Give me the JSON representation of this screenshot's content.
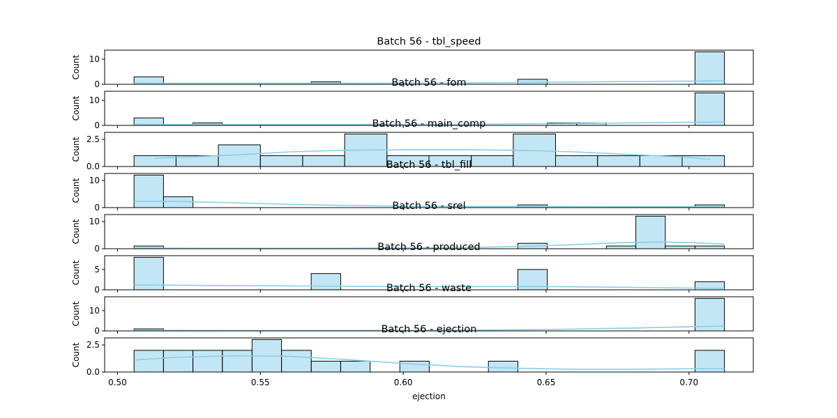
{
  "chart_data": {
    "type": "histogram",
    "figure_layout": "8 stacked subplots sharing the x-axis",
    "colors": {
      "bar_fill": "#87ceeb",
      "bar_fill_opacity": 0.5,
      "bar_edge": "#000000",
      "kde_line": "#87ceeb"
    },
    "x_axis": {
      "label": "ejection",
      "range": [
        0.4955,
        0.7225
      ],
      "ticks": [
        0.5,
        0.55,
        0.6,
        0.65,
        0.7
      ],
      "tick_labels": [
        "0.50",
        "0.55",
        "0.60",
        "0.65",
        "0.70"
      ]
    },
    "panels": [
      {
        "title": "Batch 56 - tbl_speed",
        "ylabel": "Count",
        "ylim": [
          0,
          13.65
        ],
        "yticks": [
          0,
          10
        ],
        "ytick_labels": [
          "0",
          "10"
        ],
        "bins": [
          {
            "x0": 0.5058,
            "x1": 0.5161,
            "count": 3
          },
          {
            "x0": 0.5678,
            "x1": 0.5781,
            "count": 1
          },
          {
            "x0": 0.6401,
            "x1": 0.6504,
            "count": 2
          },
          {
            "x0": 0.7021,
            "x1": 0.7124,
            "count": 13
          }
        ],
        "kde": {
          "x": [
            0.5058,
            0.54,
            0.58,
            0.62,
            0.65,
            0.68,
            0.7124
          ],
          "y": [
            0.4,
            0.4,
            0.4,
            0.5,
            0.8,
            1.1,
            1.4
          ]
        }
      },
      {
        "title": "Batch 56 - fom",
        "ylabel": "Count",
        "ylim": [
          0,
          13.65
        ],
        "yticks": [
          0,
          10
        ],
        "ytick_labels": [
          "0",
          "10"
        ],
        "bins": [
          {
            "x0": 0.5058,
            "x1": 0.5161,
            "count": 3
          },
          {
            "x0": 0.5264,
            "x1": 0.5367,
            "count": 1
          },
          {
            "x0": 0.6504,
            "x1": 0.6607,
            "count": 1
          },
          {
            "x0": 0.6607,
            "x1": 0.671,
            "count": 1
          },
          {
            "x0": 0.7021,
            "x1": 0.7124,
            "count": 13
          }
        ],
        "kde": {
          "x": [
            0.5058,
            0.54,
            0.58,
            0.62,
            0.65,
            0.68,
            0.7124
          ],
          "y": [
            0.4,
            0.35,
            0.35,
            0.45,
            0.7,
            1.0,
            1.4
          ]
        }
      },
      {
        "title": "Batch 56 - main_comp",
        "ylabel": "Count",
        "ylim": [
          0,
          3.15
        ],
        "yticks": [
          0,
          2.5
        ],
        "ytick_labels": [
          "0.0",
          "2.5"
        ],
        "bins": [
          {
            "x0": 0.5058,
            "x1": 0.5205,
            "count": 1
          },
          {
            "x0": 0.5205,
            "x1": 0.5353,
            "count": 1
          },
          {
            "x0": 0.5353,
            "x1": 0.55,
            "count": 2
          },
          {
            "x0": 0.55,
            "x1": 0.5648,
            "count": 1
          },
          {
            "x0": 0.5648,
            "x1": 0.5795,
            "count": 1
          },
          {
            "x0": 0.5795,
            "x1": 0.5943,
            "count": 3
          },
          {
            "x0": 0.5943,
            "x1": 0.609,
            "count": 1
          },
          {
            "x0": 0.609,
            "x1": 0.6238,
            "count": 1
          },
          {
            "x0": 0.6238,
            "x1": 0.6385,
            "count": 1
          },
          {
            "x0": 0.6385,
            "x1": 0.6533,
            "count": 3
          },
          {
            "x0": 0.6533,
            "x1": 0.668,
            "count": 1
          },
          {
            "x0": 0.668,
            "x1": 0.6828,
            "count": 1
          },
          {
            "x0": 0.6828,
            "x1": 0.6976,
            "count": 1
          },
          {
            "x0": 0.6976,
            "x1": 0.7124,
            "count": 1
          }
        ],
        "kde": {
          "x": [
            0.513,
            0.54,
            0.56,
            0.58,
            0.6,
            0.62,
            0.64,
            0.66,
            0.68,
            0.7,
            0.7075
          ],
          "y": [
            0.75,
            1.05,
            1.35,
            1.5,
            1.55,
            1.55,
            1.5,
            1.35,
            1.1,
            0.85,
            0.65
          ]
        }
      },
      {
        "title": "Batch 56 - tbl_fill",
        "ylabel": "Count",
        "ylim": [
          0,
          12.6
        ],
        "yticks": [
          0,
          10
        ],
        "ytick_labels": [
          "0",
          "10"
        ],
        "bins": [
          {
            "x0": 0.5058,
            "x1": 0.5161,
            "count": 12
          },
          {
            "x0": 0.5161,
            "x1": 0.5264,
            "count": 4
          },
          {
            "x0": 0.6401,
            "x1": 0.6504,
            "count": 1
          },
          {
            "x0": 0.7021,
            "x1": 0.7124,
            "count": 1
          }
        ],
        "kde": {
          "x": [
            0.5058,
            0.52,
            0.54,
            0.56,
            0.58,
            0.6,
            0.62,
            0.64,
            0.66,
            0.68,
            0.7124
          ],
          "y": [
            2.3,
            2.3,
            1.8,
            1.2,
            0.8,
            0.5,
            0.4,
            0.4,
            0.35,
            0.3,
            0.3
          ]
        }
      },
      {
        "title": "Batch 56 - srel",
        "ylabel": "Count",
        "ylim": [
          0,
          12.6
        ],
        "yticks": [
          0,
          10
        ],
        "ytick_labels": [
          "0",
          "10"
        ],
        "bins": [
          {
            "x0": 0.5058,
            "x1": 0.5161,
            "count": 1
          },
          {
            "x0": 0.6401,
            "x1": 0.6504,
            "count": 2
          },
          {
            "x0": 0.6711,
            "x1": 0.6814,
            "count": 1
          },
          {
            "x0": 0.6814,
            "x1": 0.6917,
            "count": 12
          },
          {
            "x0": 0.6917,
            "x1": 0.7021,
            "count": 1
          },
          {
            "x0": 0.7021,
            "x1": 0.7124,
            "count": 1
          }
        ],
        "kde": {
          "x": [
            0.5058,
            0.54,
            0.58,
            0.62,
            0.64,
            0.66,
            0.675,
            0.69,
            0.7,
            0.7124
          ],
          "y": [
            0.2,
            0.15,
            0.15,
            0.4,
            0.8,
            1.5,
            2.2,
            2.5,
            2.3,
            1.7
          ]
        }
      },
      {
        "title": "Batch 56 - produced",
        "ylabel": "Count",
        "ylim": [
          0,
          8.4
        ],
        "yticks": [
          0,
          5
        ],
        "ytick_labels": [
          "0",
          "5"
        ],
        "bins": [
          {
            "x0": 0.5058,
            "x1": 0.5161,
            "count": 8
          },
          {
            "x0": 0.5678,
            "x1": 0.5781,
            "count": 4
          },
          {
            "x0": 0.6401,
            "x1": 0.6504,
            "count": 5
          },
          {
            "x0": 0.7021,
            "x1": 0.7124,
            "count": 2
          }
        ],
        "kde": {
          "x": [
            0.5058,
            0.54,
            0.58,
            0.62,
            0.65,
            0.68,
            0.7124
          ],
          "y": [
            1.2,
            1.05,
            0.85,
            0.8,
            0.8,
            0.6,
            0.35
          ]
        }
      },
      {
        "title": "Batch 56 - waste",
        "ylabel": "Count",
        "ylim": [
          0,
          16.8
        ],
        "yticks": [
          0,
          10
        ],
        "ytick_labels": [
          "0",
          "10"
        ],
        "bins": [
          {
            "x0": 0.5058,
            "x1": 0.5161,
            "count": 1
          },
          {
            "x0": 0.7021,
            "x1": 0.7124,
            "count": 16
          }
        ],
        "kde": {
          "x": [
            0.5058,
            0.54,
            0.58,
            0.62,
            0.65,
            0.68,
            0.7124
          ],
          "y": [
            0.3,
            0.2,
            0.2,
            0.3,
            0.7,
            1.4,
            2.4
          ]
        }
      },
      {
        "title": "Batch 56 - ejection",
        "ylabel": "Count",
        "ylim": [
          0,
          3.15
        ],
        "yticks": [
          0,
          2.5
        ],
        "ytick_labels": [
          "0.0",
          "2.5"
        ],
        "bins": [
          {
            "x0": 0.5058,
            "x1": 0.5161,
            "count": 2
          },
          {
            "x0": 0.5161,
            "x1": 0.5264,
            "count": 2
          },
          {
            "x0": 0.5264,
            "x1": 0.5367,
            "count": 2
          },
          {
            "x0": 0.5367,
            "x1": 0.5471,
            "count": 2
          },
          {
            "x0": 0.5471,
            "x1": 0.5574,
            "count": 3
          },
          {
            "x0": 0.5574,
            "x1": 0.5678,
            "count": 2
          },
          {
            "x0": 0.5678,
            "x1": 0.5781,
            "count": 1
          },
          {
            "x0": 0.5781,
            "x1": 0.5884,
            "count": 1
          },
          {
            "x0": 0.5988,
            "x1": 0.6091,
            "count": 1
          },
          {
            "x0": 0.6298,
            "x1": 0.6401,
            "count": 1
          },
          {
            "x0": 0.7021,
            "x1": 0.7124,
            "count": 2
          }
        ],
        "kde": {
          "x": [
            0.5058,
            0.52,
            0.54,
            0.56,
            0.58,
            0.6,
            0.62,
            0.64,
            0.66,
            0.68,
            0.7,
            0.7124
          ],
          "y": [
            1.1,
            1.35,
            1.5,
            1.45,
            1.15,
            0.8,
            0.5,
            0.35,
            0.25,
            0.25,
            0.3,
            0.3
          ]
        }
      }
    ]
  }
}
